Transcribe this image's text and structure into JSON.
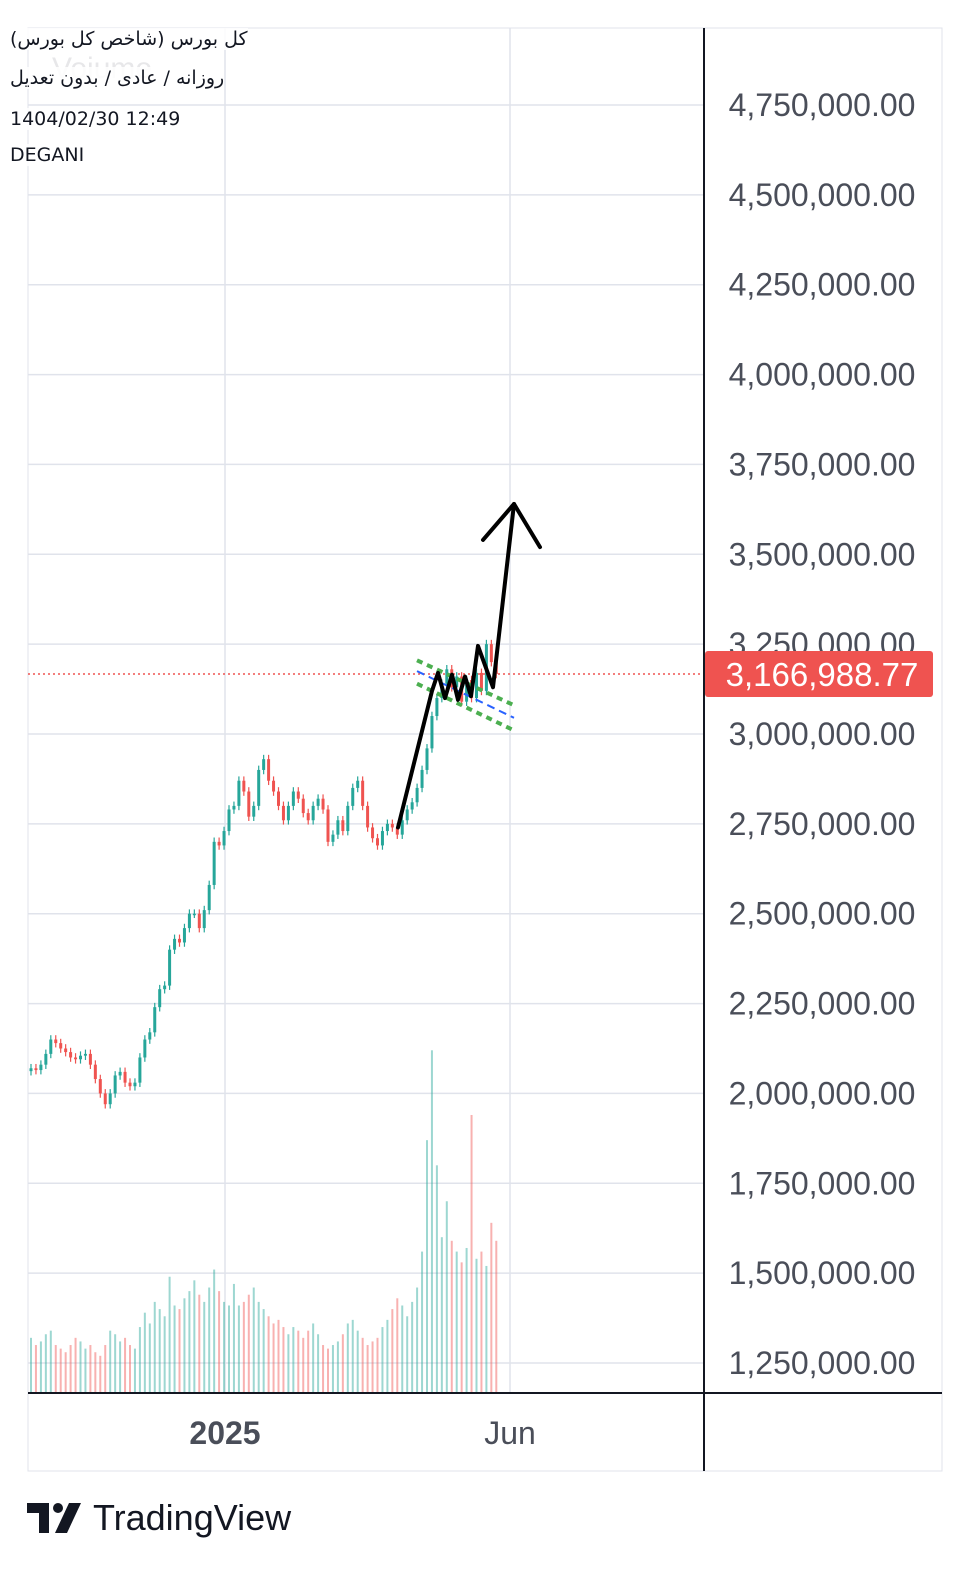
{
  "header": {
    "symbol": "کل بورس (شاخص کل بورس)",
    "settings": "روزانه / عادی / بدون تعدیل",
    "datetime": "1404/02/30 12:49",
    "author": "DEGANI",
    "watermark": "Vojume"
  },
  "brand": {
    "name": "TradingView",
    "logo_icon": "tradingview-logo-icon"
  },
  "colors": {
    "up": "#26a69a",
    "down": "#ef5350",
    "price_badge": "#ef5350",
    "grid": "#e0e3eb",
    "channel": "#4caf50",
    "midline": "#2962ff",
    "annotation": "#000000"
  },
  "chart_data": {
    "type": "candlestick",
    "title": "",
    "y_axis": {
      "ylim": [
        1180000,
        4900000
      ],
      "ticks": [
        1250000,
        1500000,
        1750000,
        2000000,
        2250000,
        2500000,
        2750000,
        3000000,
        3250000,
        3500000,
        3750000,
        4000000,
        4250000,
        4500000,
        4750000
      ],
      "tick_labels": [
        "1,250,000.00",
        "1,500,000.00",
        "1,750,000.00",
        "2,000,000.00",
        "2,250,000.00",
        "2,500,000.00",
        "2,750,000.00",
        "3,000,000.00",
        "3,250,000.00",
        "3,500,000.00",
        "3,750,000.00",
        "4,000,000.00",
        "4,250,000.00",
        "4,500,000.00",
        "4,750,000.00"
      ],
      "position": "right"
    },
    "x_axis": {
      "xlim": [
        0,
        135
      ],
      "ticks": [
        {
          "label": "2025",
          "index": 43
        },
        {
          "label": "Jun",
          "index": 95
        }
      ]
    },
    "current_price": {
      "value": 3166988.77,
      "label": "3,166,988.77"
    },
    "grid": true,
    "close_series": [
      2070000,
      2065000,
      2080000,
      2110000,
      2150000,
      2140000,
      2125000,
      2115000,
      2100000,
      2095000,
      2105000,
      2110000,
      2080000,
      2040000,
      2000000,
      1970000,
      2000000,
      2050000,
      2060000,
      2030000,
      2020000,
      2030000,
      2100000,
      2150000,
      2170000,
      2240000,
      2290000,
      2300000,
      2400000,
      2430000,
      2420000,
      2460000,
      2500000,
      2500000,
      2460000,
      2510000,
      2580000,
      2700000,
      2690000,
      2730000,
      2790000,
      2800000,
      2870000,
      2840000,
      2770000,
      2800000,
      2900000,
      2930000,
      2870000,
      2840000,
      2800000,
      2760000,
      2800000,
      2840000,
      2820000,
      2780000,
      2760000,
      2800000,
      2820000,
      2790000,
      2700000,
      2720000,
      2760000,
      2730000,
      2800000,
      2850000,
      2870000,
      2800000,
      2740000,
      2710000,
      2690000,
      2730000,
      2750000,
      2740000,
      2720000,
      2760000,
      2790000,
      2810000,
      2850000,
      2900000,
      2960000,
      3050000,
      3100000,
      3140000,
      3180000,
      3130000,
      3160000,
      3090000,
      3150000,
      3100000,
      3170000,
      3120000,
      3250000,
      3200000,
      3167000
    ],
    "volume_series": [
      1320000,
      1300000,
      1310000,
      1330000,
      1340000,
      1300000,
      1290000,
      1280000,
      1300000,
      1320000,
      1310000,
      1290000,
      1300000,
      1280000,
      1270000,
      1300000,
      1340000,
      1330000,
      1310000,
      1320000,
      1300000,
      1290000,
      1350000,
      1390000,
      1360000,
      1420000,
      1400000,
      1380000,
      1490000,
      1410000,
      1400000,
      1430000,
      1450000,
      1480000,
      1440000,
      1420000,
      1460000,
      1510000,
      1450000,
      1420000,
      1410000,
      1470000,
      1410000,
      1420000,
      1440000,
      1460000,
      1420000,
      1400000,
      1380000,
      1360000,
      1370000,
      1350000,
      1330000,
      1350000,
      1340000,
      1320000,
      1340000,
      1360000,
      1330000,
      1300000,
      1290000,
      1300000,
      1310000,
      1330000,
      1360000,
      1370000,
      1340000,
      1320000,
      1300000,
      1310000,
      1320000,
      1350000,
      1370000,
      1400000,
      1430000,
      1410000,
      1380000,
      1420000,
      1460000,
      1560000,
      1870000,
      2120000,
      1800000,
      1600000,
      1700000,
      1590000,
      1560000,
      1530000,
      1570000,
      1940000,
      1540000,
      1560000,
      1520000,
      1640000,
      1590000
    ]
  }
}
